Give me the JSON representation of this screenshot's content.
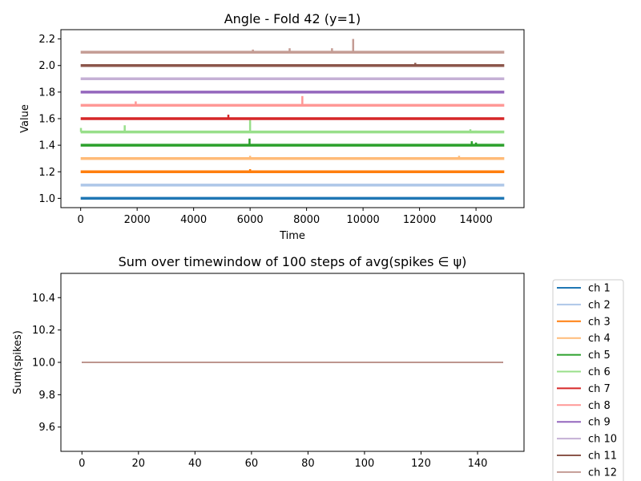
{
  "chart_data": [
    {
      "type": "line",
      "title": "Angle - Fold 42 (y=1)",
      "xlabel": "Time",
      "ylabel": "Value",
      "xlim": [
        -700,
        15700
      ],
      "ylim": [
        0.93,
        2.27
      ],
      "x_ticks": [
        0,
        2000,
        4000,
        6000,
        8000,
        10000,
        12000,
        14000
      ],
      "y_ticks": [
        1.0,
        1.2,
        1.4,
        1.6,
        1.8,
        2.0,
        2.2
      ],
      "x_range": [
        0,
        15000
      ],
      "grid": false,
      "series": [
        {
          "name": "ch 1",
          "color": "#1f77b4",
          "baseline": 1.0,
          "spikes": []
        },
        {
          "name": "ch 2",
          "color": "#aec7e8",
          "baseline": 1.1,
          "spikes": []
        },
        {
          "name": "ch 3",
          "color": "#ff7f0e",
          "baseline": 1.2,
          "spikes": [
            [
              6000,
              1.22
            ]
          ]
        },
        {
          "name": "ch 4",
          "color": "#ffbb78",
          "baseline": 1.3,
          "spikes": [
            [
              6000,
              1.32
            ],
            [
              13400,
              1.32
            ]
          ]
        },
        {
          "name": "ch 5",
          "color": "#2ca02c",
          "baseline": 1.4,
          "spikes": [
            [
              5980,
              1.45
            ],
            [
              13850,
              1.43
            ],
            [
              14000,
              1.42
            ]
          ]
        },
        {
          "name": "ch 6",
          "color": "#98df8a",
          "baseline": 1.5,
          "spikes": [
            [
              10,
              1.53
            ],
            [
              1560,
              1.55
            ],
            [
              6000,
              1.59
            ],
            [
              13800,
              1.52
            ],
            [
              14000,
              1.51
            ]
          ]
        },
        {
          "name": "ch 7",
          "color": "#d62728",
          "baseline": 1.6,
          "spikes": [
            [
              5230,
              1.63
            ]
          ]
        },
        {
          "name": "ch 8",
          "color": "#ff9896",
          "baseline": 1.7,
          "spikes": [
            [
              1950,
              1.73
            ],
            [
              7850,
              1.77
            ]
          ]
        },
        {
          "name": "ch 9",
          "color": "#9467bd",
          "baseline": 1.8,
          "spikes": []
        },
        {
          "name": "ch 10",
          "color": "#c5b0d5",
          "baseline": 1.9,
          "spikes": []
        },
        {
          "name": "ch 11",
          "color": "#8c564b",
          "baseline": 2.0,
          "spikes": [
            [
              11850,
              2.02
            ]
          ]
        },
        {
          "name": "ch 12",
          "color": "#c49c94",
          "baseline": 2.1,
          "spikes": [
            [
              6100,
              2.12
            ],
            [
              7400,
              2.13
            ],
            [
              8900,
              2.13
            ],
            [
              9650,
              2.2
            ]
          ]
        }
      ]
    },
    {
      "type": "line",
      "title": "Sum over timewindow of 100 steps of avg(spikes ∈ ψ)",
      "xlabel": "",
      "ylabel": "Sum(spikes)",
      "xlim": [
        -7.45,
        156.45
      ],
      "ylim": [
        9.45,
        10.55
      ],
      "x_ticks": [
        0,
        20,
        40,
        60,
        80,
        100,
        120,
        140
      ],
      "y_ticks": [
        9.6,
        9.8,
        10.0,
        10.2,
        10.4
      ],
      "x_range": [
        0,
        149
      ],
      "value": 10.0,
      "grid": false,
      "legend": "outside-right",
      "series_names": [
        "ch 1",
        "ch 2",
        "ch 3",
        "ch 4",
        "ch 5",
        "ch 6",
        "ch 7",
        "ch 8",
        "ch 9",
        "ch 10",
        "ch 11",
        "ch 12"
      ]
    }
  ]
}
